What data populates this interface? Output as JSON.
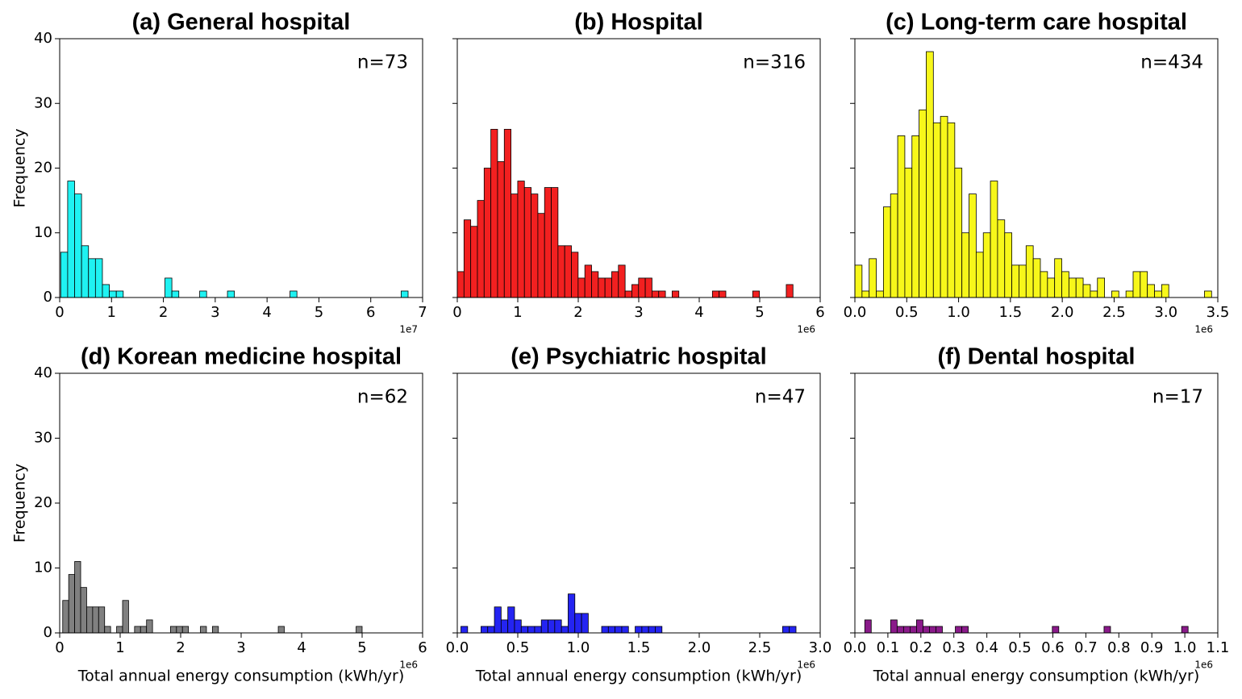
{
  "chart_data": [
    {
      "type": "histogram",
      "title": "(a) General hospital",
      "annotation": "n=73",
      "ylabel": "Frequency",
      "x_offset_label": "1e7",
      "color": "#1ff2f2",
      "bins": [
        0.02,
        0.154,
        0.288,
        0.422,
        0.556,
        0.69,
        0.824,
        0.958,
        1.092,
        1.226,
        1.36,
        1.494,
        1.628,
        1.762,
        1.896,
        2.03,
        2.164,
        2.298,
        2.432,
        2.566,
        2.7,
        2.834,
        2.968,
        3.102,
        3.236,
        3.37,
        3.504,
        3.638,
        3.772,
        3.906,
        4.04,
        4.174,
        4.308,
        4.442,
        4.576,
        4.71,
        4.844,
        4.978,
        5.112,
        5.246,
        5.38,
        5.514,
        5.648,
        5.782,
        5.916,
        6.05,
        6.184,
        6.318,
        6.452,
        6.586,
        6.72
      ],
      "values": [
        7,
        18,
        16,
        8,
        6,
        6,
        2,
        1,
        1,
        0,
        0,
        0,
        0,
        0,
        0,
        3,
        1,
        0,
        0,
        0,
        1,
        0,
        0,
        0,
        1,
        0,
        0,
        0,
        0,
        0,
        0,
        0,
        0,
        1,
        0,
        0,
        0,
        0,
        0,
        0,
        0,
        0,
        0,
        0,
        0,
        0,
        0,
        0,
        0,
        1
      ],
      "xlim": [
        0,
        7
      ],
      "xticks": [
        0,
        1,
        2,
        3,
        4,
        5,
        6,
        7
      ],
      "ylim": [
        0,
        40
      ],
      "yticks": [
        0,
        10,
        20,
        30,
        40
      ],
      "show_ytick_labels": true
    },
    {
      "type": "histogram",
      "title": "(b) Hospital",
      "annotation": "n=316",
      "x_offset_label": "1e6",
      "color": "#f22020",
      "bins": [
        0,
        0.111,
        0.222,
        0.333,
        0.444,
        0.555,
        0.666,
        0.777,
        0.888,
        0.999,
        1.11,
        1.221,
        1.332,
        1.443,
        1.554,
        1.665,
        1.776,
        1.887,
        1.998,
        2.109,
        2.22,
        2.331,
        2.442,
        2.553,
        2.664,
        2.775,
        2.886,
        2.997,
        3.108,
        3.219,
        3.33,
        3.441,
        3.552,
        3.663,
        3.774,
        3.885,
        3.996,
        4.107,
        4.218,
        4.329,
        4.44,
        4.551,
        4.662,
        4.773,
        4.884,
        4.995,
        5.106,
        5.217,
        5.328,
        5.439,
        5.55
      ],
      "values": [
        4,
        12,
        11,
        15,
        20,
        26,
        21,
        26,
        16,
        18,
        17,
        16,
        13,
        17,
        17,
        8,
        8,
        7,
        3,
        5,
        4,
        3,
        3,
        4,
        5,
        1,
        2,
        3,
        3,
        1,
        1,
        0,
        1,
        0,
        0,
        0,
        0,
        0,
        1,
        1,
        0,
        0,
        0,
        0,
        1,
        0,
        0,
        0,
        0,
        2
      ],
      "xlim": [
        0,
        6
      ],
      "xticks": [
        0,
        1,
        2,
        3,
        4,
        5,
        6
      ],
      "ylim": [
        0,
        40
      ],
      "yticks": [
        0,
        10,
        20,
        30,
        40
      ],
      "show_ytick_labels": false
    },
    {
      "type": "histogram",
      "title": "(c) Long-term care hospital",
      "annotation": "n=434",
      "x_offset_label": "1e6",
      "color": "#f7f71a",
      "bins": [
        0,
        0.0688,
        0.1376,
        0.2064,
        0.2752,
        0.344,
        0.4128,
        0.4816,
        0.5504,
        0.6192,
        0.688,
        0.7568,
        0.8256,
        0.8944,
        0.9632,
        1.032,
        1.1008,
        1.1696,
        1.2384,
        1.3072,
        1.376,
        1.4448,
        1.5136,
        1.5824,
        1.6512,
        1.72,
        1.7888,
        1.8576,
        1.9264,
        1.9952,
        2.064,
        2.1328,
        2.2016,
        2.2704,
        2.3392,
        2.408,
        2.4768,
        2.5456,
        2.6144,
        2.6832,
        2.752,
        2.8208,
        2.8896,
        2.9584,
        3.0272,
        3.096,
        3.1648,
        3.2336,
        3.3024,
        3.3712,
        3.44
      ],
      "values": [
        5,
        1,
        6,
        1,
        14,
        16,
        25,
        20,
        25,
        29,
        38,
        27,
        28,
        27,
        20,
        10,
        16,
        7,
        10,
        18,
        12,
        10,
        5,
        5,
        8,
        6,
        4,
        3,
        6,
        4,
        3,
        3,
        2,
        1,
        3,
        0,
        1,
        0,
        1,
        4,
        4,
        2,
        1,
        2,
        0,
        0,
        0,
        0,
        0,
        1
      ],
      "xlim": [
        0,
        3.5
      ],
      "xticks": [
        {
          "value": 0,
          "label": "0.0"
        },
        0.5,
        {
          "value": 1,
          "label": "1.0"
        },
        1.5,
        {
          "value": 2,
          "label": "2.0"
        },
        2.5,
        {
          "value": 3,
          "label": "3.0"
        },
        3.5
      ],
      "ylim": [
        0,
        40
      ],
      "yticks": [
        0,
        10,
        20,
        30,
        40
      ],
      "show_ytick_labels": false
    },
    {
      "type": "histogram",
      "title": "(d) Korean medicine hospital",
      "annotation": "n=62",
      "ylabel": "Frequency",
      "xlabel": "Total annual energy consumption (kWh/yr)",
      "x_offset_label": "1e6",
      "color": "#808080",
      "bins": [
        0.05,
        0.149,
        0.248,
        0.347,
        0.446,
        0.545,
        0.644,
        0.743,
        0.842,
        0.941,
        1.04,
        1.139,
        1.238,
        1.337,
        1.436,
        1.535,
        1.634,
        1.733,
        1.832,
        1.931,
        2.03,
        2.129,
        2.228,
        2.327,
        2.426,
        2.525,
        2.624,
        2.723,
        2.822,
        2.921,
        3.02,
        3.119,
        3.218,
        3.317,
        3.416,
        3.515,
        3.614,
        3.713,
        3.812,
        3.911,
        4.01,
        4.109,
        4.208,
        4.307,
        4.406,
        4.505,
        4.604,
        4.703,
        4.802,
        4.901,
        5.0
      ],
      "values": [
        5,
        9,
        11,
        7,
        4,
        4,
        4,
        1,
        0,
        1,
        5,
        0,
        1,
        1,
        2,
        0,
        0,
        0,
        1,
        1,
        1,
        0,
        0,
        1,
        0,
        1,
        0,
        0,
        0,
        0,
        0,
        0,
        0,
        0,
        0,
        0,
        1,
        0,
        0,
        0,
        0,
        0,
        0,
        0,
        0,
        0,
        0,
        0,
        0,
        1
      ],
      "xlim": [
        0,
        6
      ],
      "xticks": [
        0,
        1,
        2,
        3,
        4,
        5,
        6
      ],
      "ylim": [
        0,
        40
      ],
      "yticks": [
        0,
        10,
        20,
        30,
        40
      ],
      "show_ytick_labels": true
    },
    {
      "type": "histogram",
      "title": "(e) Psychiatric hospital",
      "annotation": "n=47",
      "xlabel": "Total annual energy consumption (kWh/yr)",
      "x_offset_label": "1e6",
      "color": "#2424f2",
      "bins": [
        0.03,
        0.0854,
        0.1408,
        0.1962,
        0.2516,
        0.307,
        0.3624,
        0.4178,
        0.4732,
        0.5286,
        0.584,
        0.6394,
        0.6948,
        0.7502,
        0.8056,
        0.861,
        0.9164,
        0.9718,
        1.0272,
        1.0826,
        1.138,
        1.1934,
        1.2488,
        1.3042,
        1.3596,
        1.415,
        1.4704,
        1.5258,
        1.5812,
        1.6366,
        1.692,
        1.7474,
        1.8028,
        1.8582,
        1.9136,
        1.969,
        2.0244,
        2.0798,
        2.1352,
        2.1906,
        2.246,
        2.3014,
        2.3568,
        2.4122,
        2.4676,
        2.523,
        2.5784,
        2.6338,
        2.6892,
        2.7446,
        2.8
      ],
      "values": [
        1,
        0,
        0,
        1,
        1,
        4,
        2,
        4,
        2,
        1,
        1,
        1,
        2,
        2,
        2,
        1,
        6,
        3,
        3,
        0,
        0,
        1,
        1,
        1,
        1,
        0,
        1,
        1,
        1,
        1,
        0,
        0,
        0,
        0,
        0,
        0,
        0,
        0,
        0,
        0,
        0,
        0,
        0,
        0,
        0,
        0,
        0,
        0,
        1,
        1
      ],
      "xlim": [
        0,
        3
      ],
      "xticks": [
        {
          "value": 0,
          "label": "0.0"
        },
        0.5,
        {
          "value": 1,
          "label": "1.0"
        },
        1.5,
        {
          "value": 2,
          "label": "2.0"
        },
        2.5,
        {
          "value": 3,
          "label": "3.0"
        }
      ],
      "ylim": [
        0,
        40
      ],
      "yticks": [
        0,
        10,
        20,
        30,
        40
      ],
      "show_ytick_labels": false
    },
    {
      "type": "histogram",
      "title": "(f) Dental hospital",
      "annotation": "n=17",
      "xlabel": "Total annual energy consumption (kWh/yr)",
      "x_offset_label": "1e6",
      "color": "#8a1a8a",
      "bins": [
        0.03,
        0.0496,
        0.0692,
        0.0888,
        0.1084,
        0.128,
        0.1476,
        0.1672,
        0.1868,
        0.2064,
        0.226,
        0.2456,
        0.2652,
        0.2848,
        0.3044,
        0.324,
        0.3436,
        0.3632,
        0.3828,
        0.4024,
        0.422,
        0.4416,
        0.4612,
        0.4808,
        0.5004,
        0.52,
        0.5396,
        0.5592,
        0.5788,
        0.5984,
        0.618,
        0.6376,
        0.6572,
        0.6768,
        0.6964,
        0.716,
        0.7356,
        0.7552,
        0.7748,
        0.7944,
        0.814,
        0.8336,
        0.8532,
        0.8728,
        0.8924,
        0.912,
        0.9316,
        0.9512,
        0.9708,
        0.9904,
        1.01
      ],
      "values": [
        2,
        0,
        0,
        0,
        2,
        1,
        1,
        1,
        2,
        1,
        1,
        1,
        0,
        0,
        1,
        1,
        0,
        0,
        0,
        0,
        0,
        0,
        0,
        0,
        0,
        0,
        0,
        0,
        0,
        1,
        0,
        0,
        0,
        0,
        0,
        0,
        0,
        1,
        0,
        0,
        0,
        0,
        0,
        0,
        0,
        0,
        0,
        0,
        0,
        1
      ],
      "xlim": [
        0,
        1.1
      ],
      "xticks": [
        {
          "value": 0,
          "label": "0.0"
        },
        0.1,
        0.2,
        0.3,
        0.4,
        0.5,
        0.6,
        0.7,
        0.8,
        0.9,
        {
          "value": 1,
          "label": "1.0"
        },
        1.1
      ],
      "ylim": [
        0,
        40
      ],
      "yticks": [
        0,
        10,
        20,
        30,
        40
      ],
      "show_ytick_labels": false
    }
  ]
}
